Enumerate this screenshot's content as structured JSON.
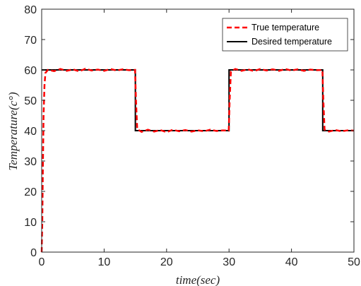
{
  "chart_data": {
    "type": "line",
    "xlabel": "time(sec)",
    "ylabel": "Temperature(c°)",
    "xlim": [
      0,
      50
    ],
    "ylim": [
      0,
      80
    ],
    "xticks": [
      0,
      10,
      20,
      30,
      40,
      50
    ],
    "yticks": [
      0,
      10,
      20,
      30,
      40,
      50,
      60,
      70,
      80
    ],
    "xtick_labels": [
      "0",
      "10",
      "20",
      "30",
      "40",
      "50"
    ],
    "ytick_labels": [
      "0",
      "10",
      "20",
      "30",
      "40",
      "50",
      "60",
      "70",
      "80"
    ],
    "grid": false,
    "legend_position": "top-right",
    "series": [
      {
        "name": "True temperature",
        "color": "#ff0000",
        "style": "dashed",
        "x": [
          0,
          0.1,
          0.2,
          0.3,
          0.45,
          0.6,
          1.0,
          2,
          3,
          4,
          5,
          6,
          7,
          8,
          9,
          10,
          11,
          12,
          13,
          14,
          14.95,
          15.1,
          15.3,
          16,
          17,
          18,
          19,
          20,
          21,
          22,
          23,
          24,
          25,
          26,
          27,
          28,
          29,
          29.95,
          30.1,
          30.3,
          31,
          32,
          33,
          34,
          35,
          36,
          37,
          38,
          39,
          40,
          41,
          42,
          43,
          44,
          44.95,
          45.1,
          45.3,
          46,
          47,
          48,
          49,
          50
        ],
        "y": [
          0,
          10,
          29,
          45,
          55,
          59,
          60,
          59.6,
          60.3,
          59.7,
          60.2,
          59.5,
          60.4,
          59.8,
          60.1,
          59.7,
          60.3,
          59.8,
          60.2,
          59.9,
          60,
          50,
          40.5,
          39.6,
          40.3,
          39.7,
          40.2,
          39.5,
          40.3,
          39.8,
          40.2,
          39.7,
          40.1,
          39.8,
          40.3,
          39.9,
          40.1,
          40,
          50,
          59.5,
          60.3,
          59.7,
          60.2,
          59.6,
          60.3,
          59.8,
          60.2,
          59.7,
          60.3,
          59.8,
          60.2,
          59.7,
          60.1,
          59.9,
          60,
          50,
          40.3,
          39.7,
          40.2,
          39.8,
          40.1,
          40
        ]
      },
      {
        "name": "Desired temperature",
        "color": "#000000",
        "style": "solid",
        "x": [
          0,
          15,
          15,
          30,
          30,
          45,
          45,
          50
        ],
        "y": [
          60,
          60,
          40,
          40,
          60,
          60,
          40,
          40
        ]
      }
    ]
  }
}
